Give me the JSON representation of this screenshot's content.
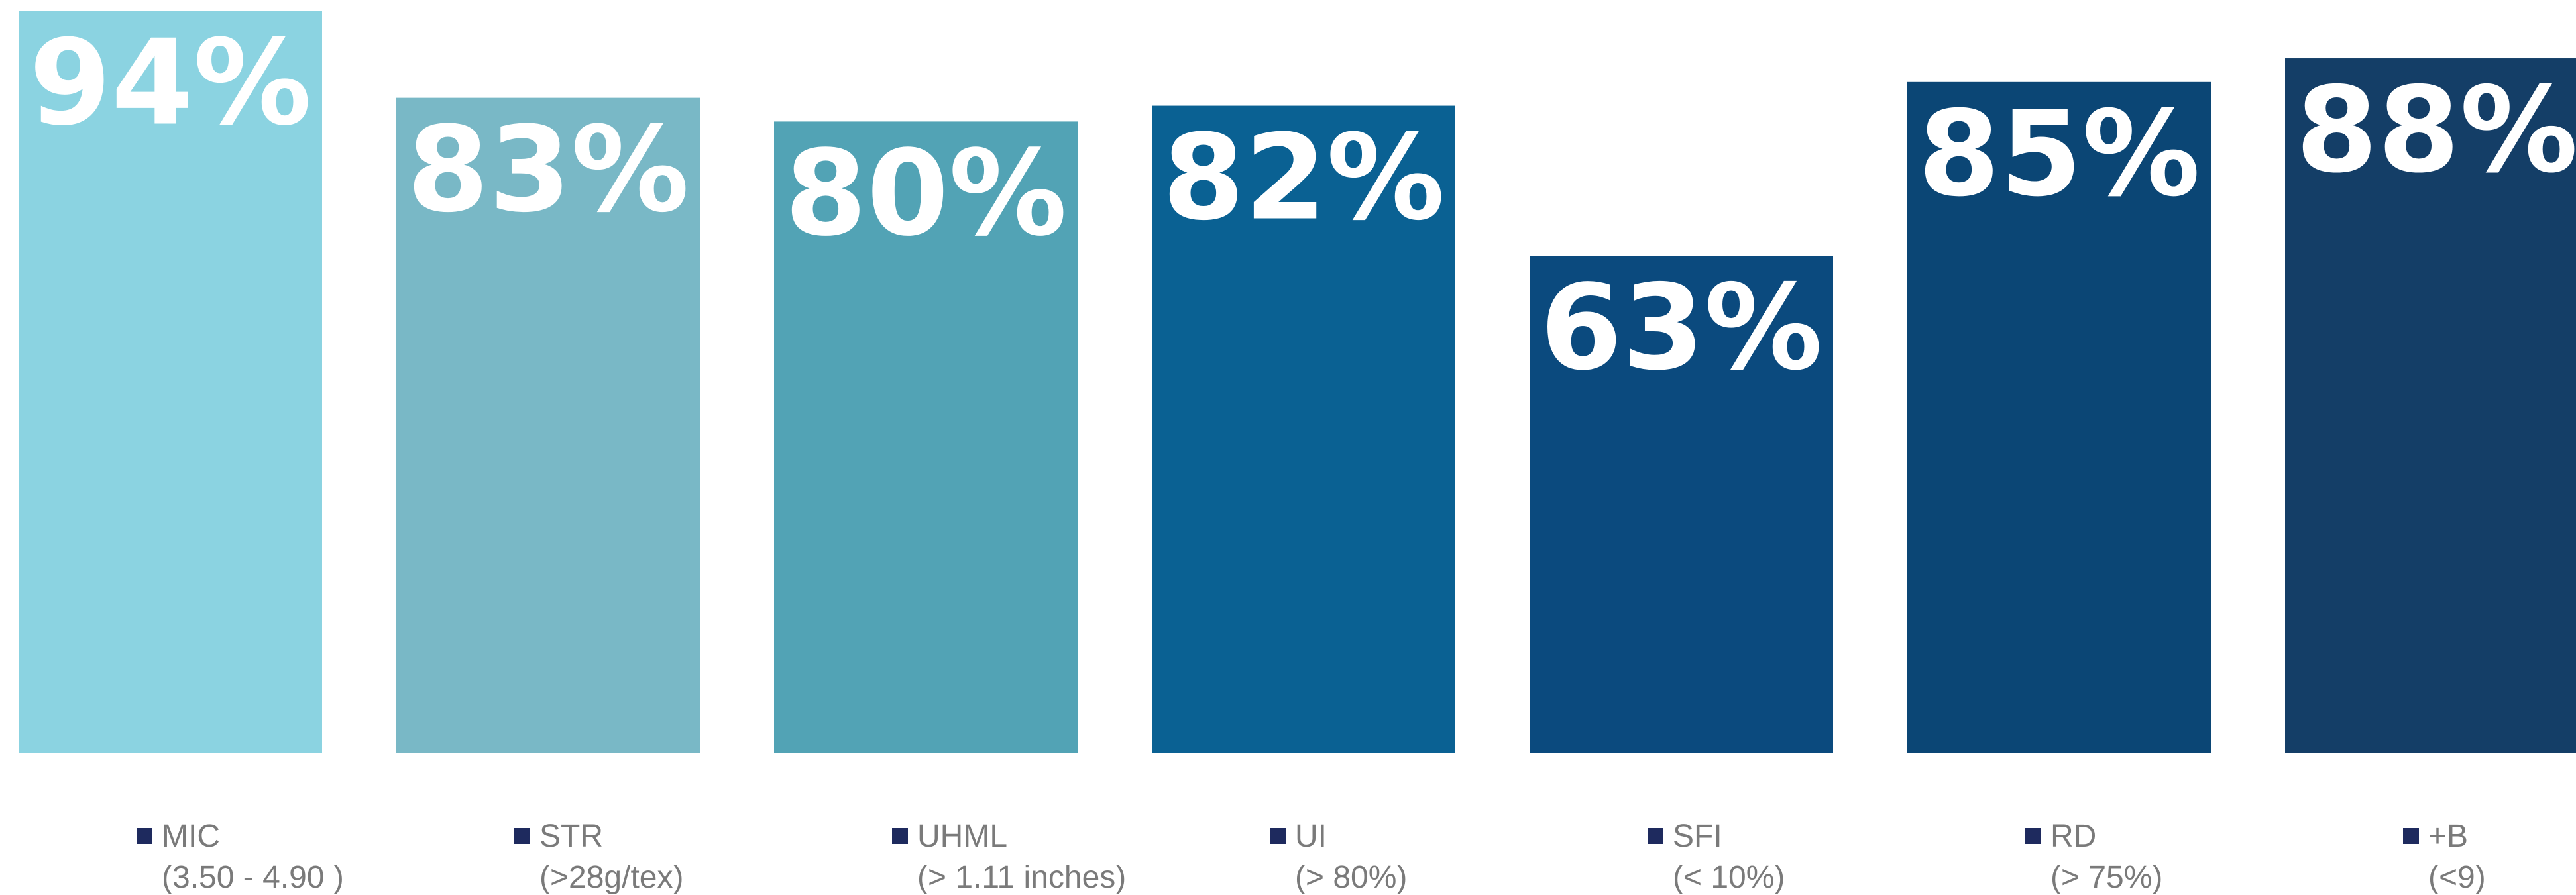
{
  "chart_data": {
    "type": "bar",
    "title": "",
    "xlabel": "",
    "ylabel": "",
    "ylim": [
      0,
      100
    ],
    "grid": false,
    "legend_position": "bottom",
    "categories": [
      "MIC",
      "STR",
      "UHML",
      "UI",
      "SFI",
      "RD",
      "+B"
    ],
    "category_subtitles": [
      "(3.50 - 4.90 )",
      "(>28g/tex)",
      "(> 1.11 inches)",
      "(> 80%)",
      "(< 10%)",
      "(> 75%)",
      "(<9)"
    ],
    "values": [
      94,
      83,
      80,
      82,
      63,
      85,
      88
    ],
    "value_labels": [
      "94%",
      "83%",
      "80%",
      "82%",
      "63%",
      "85%",
      "88%"
    ],
    "colors": [
      "#8BD3E1",
      "#79B8C6",
      "#52A3B5",
      "#0A6193",
      "#0B4A7E",
      "#0B4675",
      "#143E67"
    ],
    "legend_marker_color": "#1E2A5E"
  }
}
